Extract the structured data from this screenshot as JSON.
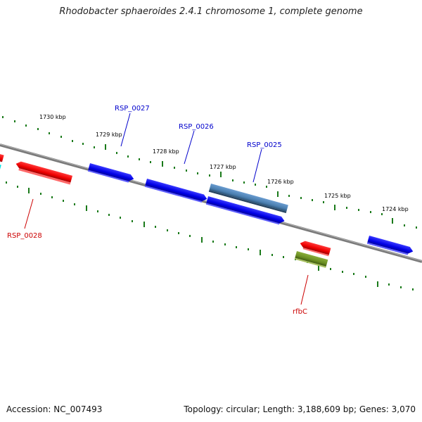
{
  "title": "Rhodobacter sphaeroides 2.4.1 chromosome 1, complete genome",
  "footer": {
    "accession": "Accession: NC_007493",
    "summary": "Topology: circular; Length: 3,188,609 bp; Genes: 3,070"
  },
  "ticks": [
    "1730 kbp",
    "1729 kbp",
    "1728 kbp",
    "1727 kbp",
    "1726 kbp",
    "1725 kbp",
    "1724 kbp"
  ],
  "gene_labels": [
    {
      "name": "RSP_0027",
      "color": "#0000cc"
    },
    {
      "name": "RSP_0026",
      "color": "#0000cc"
    },
    {
      "name": "RSP_0025",
      "color": "#0000cc"
    },
    {
      "name": "RSP_0028",
      "color": "#cc0000"
    },
    {
      "name": "rfbC",
      "color": "#cc0000"
    }
  ],
  "colors": {
    "forward_gene": "#0000ee",
    "reverse_gene": "#ee0000",
    "highlight_gene": "#4a7fb0",
    "olive_gene": "#6b8e23",
    "cyan_gene": "#00e5e5",
    "backbone": "#7a7a7a",
    "tick_marks": "#1a7a1a"
  }
}
